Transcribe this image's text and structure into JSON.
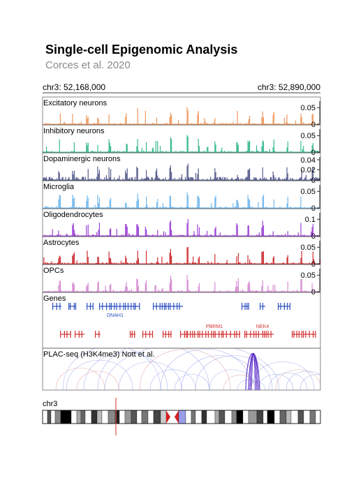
{
  "title": "Single-cell Epigenomic Analysis",
  "subtitle": "Corces et al. 2020",
  "region": {
    "left_label": "chr3: 52,168,000",
    "right_label": "chr3: 52,890,000",
    "start": 52168000,
    "end": 52890000
  },
  "chart_data": {
    "type": "area",
    "tracks": [
      {
        "name": "Excitatory neurons",
        "color": "#f0975a",
        "ylim": [
          0,
          0.06
        ],
        "ticks": [
          "0.05",
          "0"
        ]
      },
      {
        "name": "Inhibitory neurons",
        "color": "#35b890",
        "ylim": [
          0,
          0.06
        ],
        "ticks": [
          "0.05",
          "0"
        ]
      },
      {
        "name": "Dopaminergic neurons",
        "color": "#555b8b",
        "ylim": [
          0,
          0.045
        ],
        "ticks": [
          "0.04",
          "0.02",
          "0"
        ]
      },
      {
        "name": "Microglia",
        "color": "#71b8ee",
        "ylim": [
          0,
          0.06
        ],
        "ticks": [
          "0.05",
          "0"
        ]
      },
      {
        "name": "Oligodendrocytes",
        "color": "#9c3fd6",
        "ylim": [
          0,
          0.12
        ],
        "ticks": [
          "0.1",
          "0"
        ]
      },
      {
        "name": "Astrocytes",
        "color": "#cc2b2f",
        "ylim": [
          0,
          0.06
        ],
        "ticks": [
          "0.05",
          "0"
        ]
      },
      {
        "name": "OPCs",
        "color": "#d58bd3",
        "ylim": [
          0,
          0.06
        ],
        "ticks": [
          "0.05",
          "0"
        ]
      }
    ],
    "genes_track": {
      "label": "Genes",
      "plus_color": "#2a4fc0",
      "minus_color": "#d23030",
      "labels": [
        {
          "text": "DNAH1",
          "strand": "+"
        },
        {
          "text": "PBRM1",
          "strand": "-"
        },
        {
          "text": "NEK4",
          "strand": "-"
        }
      ]
    },
    "arcs_track": {
      "label": "PLAC-seq (H3K4me3) Nott et al."
    },
    "ideogram": {
      "label": "chr3",
      "highlight_color": "#e05050",
      "centromere_color": "#d42020",
      "gvar_color": "#9a9de8"
    }
  }
}
